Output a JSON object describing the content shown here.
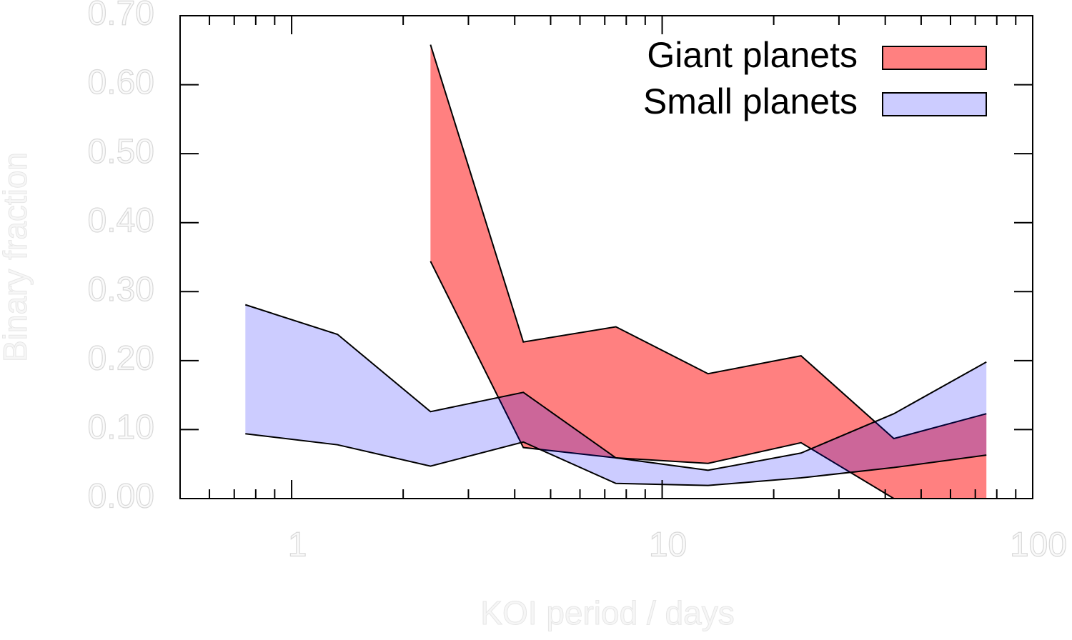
{
  "chart_data": {
    "type": "band",
    "x_label": "KOI period / days",
    "y_label": "Binary fraction",
    "x": [
      0.75,
      1.33,
      2.37,
      4.22,
      7.5,
      13.3,
      23.7,
      42.2,
      75
    ],
    "series": [
      {
        "name": "Giant planets",
        "color": "#ff8080",
        "opacity": 1,
        "upper": [
          null,
          null,
          0.658,
          0.227,
          0.249,
          0.181,
          0.207,
          0.087,
          0.123
        ],
        "lower": [
          null,
          null,
          0.344,
          0.074,
          0.059,
          0.051,
          0.081,
          0.0,
          0.0
        ]
      },
      {
        "name": "Small planets",
        "color": "#0000ff",
        "opacity": 0.2,
        "upper": [
          0.281,
          0.238,
          0.126,
          0.154,
          0.059,
          0.041,
          0.066,
          0.123,
          0.198
        ],
        "lower": [
          0.094,
          0.078,
          0.047,
          0.082,
          0.022,
          0.019,
          0.03,
          0.045,
          0.063
        ]
      }
    ],
    "xlog": true,
    "xlim": [
      0.5,
      100
    ],
    "xticks": [
      1,
      10,
      100
    ],
    "xminorticks": [
      0.6,
      0.7,
      0.8,
      0.9,
      2,
      3,
      4,
      5,
      6,
      7,
      8,
      9,
      20,
      30,
      40,
      50,
      60,
      70,
      80,
      90
    ],
    "ylim": [
      0,
      0.7
    ],
    "yticks": [
      {
        "value": 0,
        "label": "0.00"
      },
      {
        "value": 0.1,
        "label": "0.10"
      },
      {
        "value": 0.2,
        "label": "0.20"
      },
      {
        "value": 0.3,
        "label": "0.30"
      },
      {
        "value": 0.4,
        "label": "0.40"
      },
      {
        "value": 0.5,
        "label": "0.50"
      },
      {
        "value": 0.6,
        "label": "0.60"
      },
      {
        "value": 0.7,
        "label": "0.70"
      }
    ],
    "legend": "upper right"
  }
}
